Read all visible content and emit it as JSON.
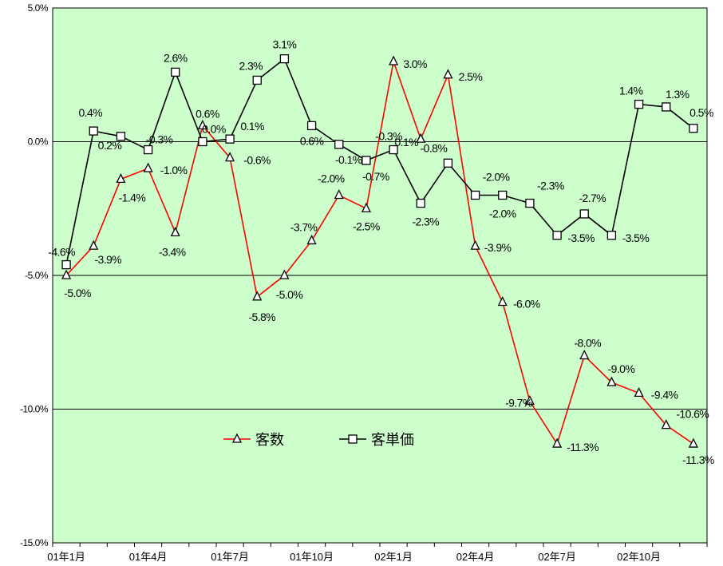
{
  "chart_data": {
    "type": "line",
    "title": "",
    "xlabel": "",
    "ylabel": "",
    "ylim": [
      -15.0,
      5.0
    ],
    "yticks": [
      5.0,
      0.0,
      -5.0,
      -10.0,
      -15.0
    ],
    "ytick_labels": [
      "5.0%",
      "0.0%",
      "-5.0%",
      "-10.0%",
      "-15.0%"
    ],
    "x": [
      "01年1月",
      "01年2月",
      "01年3月",
      "01年4月",
      "01年5月",
      "01年6月",
      "01年7月",
      "01年8月",
      "01年9月",
      "01年10月",
      "01年11月",
      "01年12月",
      "02年1月",
      "02年2月",
      "02年3月",
      "02年4月",
      "02年5月",
      "02年6月",
      "02年7月",
      "02年8月",
      "02年9月",
      "02年10月",
      "02年11月",
      "02年12月"
    ],
    "xtick_labels": [
      "01年1月",
      "01年4月",
      "01年7月",
      "01年10月",
      "02年1月",
      "02年4月",
      "02年7月",
      "02年10月"
    ],
    "grid": "horizontal",
    "background": "#ccffcc",
    "legend_position": "center-bottom",
    "series": [
      {
        "name": "客数",
        "color": "#ff0000",
        "marker": "triangle",
        "values": [
          -5.0,
          -3.9,
          -1.4,
          -1.0,
          -3.4,
          0.6,
          -0.6,
          -5.8,
          -5.0,
          -3.7,
          -2.0,
          -2.5,
          3.0,
          0.1,
          2.5,
          -3.9,
          -6.0,
          -9.7,
          -11.3,
          -8.0,
          -9.0,
          -9.4,
          -10.6,
          -11.3
        ],
        "labels": [
          "-5.0%",
          "-3.9%",
          "-1.4%",
          "-1.0%",
          "-3.4%",
          "0.6%",
          "-0.6%",
          "-5.8%",
          "-5.0%",
          "-3.7%",
          "-2.0%",
          "-2.5%",
          "3.0%",
          "0.1%",
          "2.5%",
          "-3.9%",
          "-6.0%",
          "-9.7%",
          "-11.3%",
          "-8.0%",
          "-9.0%",
          "-9.4%",
          "-10.6%",
          "-11.3%"
        ]
      },
      {
        "name": "客単価",
        "color": "#000000",
        "marker": "square",
        "values": [
          -4.6,
          0.4,
          0.2,
          -0.3,
          2.6,
          0.0,
          0.1,
          2.3,
          3.1,
          0.6,
          -0.1,
          -0.7,
          -0.3,
          -2.3,
          -0.8,
          -2.0,
          -2.0,
          -2.3,
          -3.5,
          -2.7,
          -3.5,
          1.4,
          1.3,
          0.5
        ],
        "labels": [
          "-4.6%",
          "0.4%",
          "0.2%",
          "-0.3%",
          "2.6%",
          "0.0%",
          "0.1%",
          "2.3%",
          "3.1%",
          "0.6%",
          "-0.1%",
          "-0.7%",
          "-0.3%",
          "-2.3%",
          "-0.8%",
          "-2.0%",
          "-2.0%",
          "-2.3%",
          "-3.5%",
          "-2.7%",
          "-3.5%",
          "1.4%",
          "1.3%",
          "0.5%"
        ]
      }
    ]
  }
}
